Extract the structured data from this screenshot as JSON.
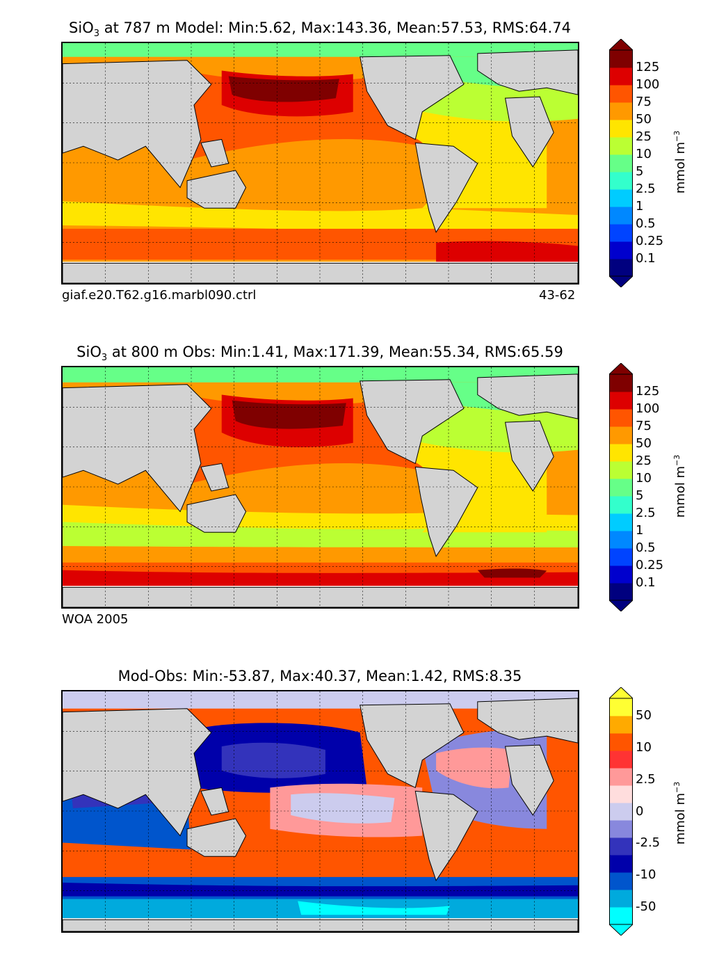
{
  "panels": [
    {
      "title_pre": "SiO",
      "title_sub": "3",
      "title_post": " at 787 m Model: Min:5.62, Max:143.36, Mean:57.53, RMS:64.74",
      "footer_left": "giaf.e20.T62.g16.marbl090.ctrl",
      "footer_right": "43-62",
      "unit_pre": "mmol m",
      "unit_sup": "−3",
      "colorbar_ticks": [
        "125",
        "100",
        "75",
        "50",
        "25",
        "10",
        "5",
        "2.5",
        "1",
        "0.5",
        "0.25",
        "0.1"
      ],
      "colorbar_colors": [
        "#00007f",
        "#0000cd",
        "#0044ff",
        "#0088ff",
        "#00ccff",
        "#33ffcc",
        "#66ff88",
        "#bbff33",
        "#ffe500",
        "#ff9900",
        "#ff5500",
        "#dd0000",
        "#7f0000"
      ],
      "colorbar_extend_low": "#00007f",
      "colorbar_extend_high": "#7f0000"
    },
    {
      "title_pre": "SiO",
      "title_sub": "3",
      "title_post": " at 800 m Obs: Min:1.41, Max:171.39, Mean:55.34, RMS:65.59",
      "footer_left": "WOA 2005",
      "footer_right": "",
      "unit_pre": "mmol m",
      "unit_sup": "−3",
      "colorbar_ticks": [
        "125",
        "100",
        "75",
        "50",
        "25",
        "10",
        "5",
        "2.5",
        "1",
        "0.5",
        "0.25",
        "0.1"
      ],
      "colorbar_colors": [
        "#00007f",
        "#0000cd",
        "#0044ff",
        "#0088ff",
        "#00ccff",
        "#33ffcc",
        "#66ff88",
        "#bbff33",
        "#ffe500",
        "#ff9900",
        "#ff5500",
        "#dd0000",
        "#7f0000"
      ],
      "colorbar_extend_low": "#00007f",
      "colorbar_extend_high": "#7f0000"
    },
    {
      "title": "Mod-Obs: Min:-53.87, Max:40.37, Mean:1.42, RMS:8.35",
      "unit_pre": "mmol m",
      "unit_sup": "−3",
      "colorbar_ticks": [
        "50",
        "10",
        "2.5",
        "0",
        "-2.5",
        "-10",
        "-50"
      ],
      "colorbar_colors": [
        "#00ffff",
        "#00aadd",
        "#0055cc",
        "#0000aa",
        "#3333bb",
        "#8888dd",
        "#ccccee",
        "#ffdddd",
        "#ff9999",
        "#ff3333",
        "#ff5500",
        "#ffaa00",
        "#ffff33"
      ],
      "colorbar_extend_low": "#00ffff",
      "colorbar_extend_high": "#ffff33"
    }
  ],
  "colors": {
    "land": "#d3d3d3",
    "nodata": "#ffffff"
  }
}
